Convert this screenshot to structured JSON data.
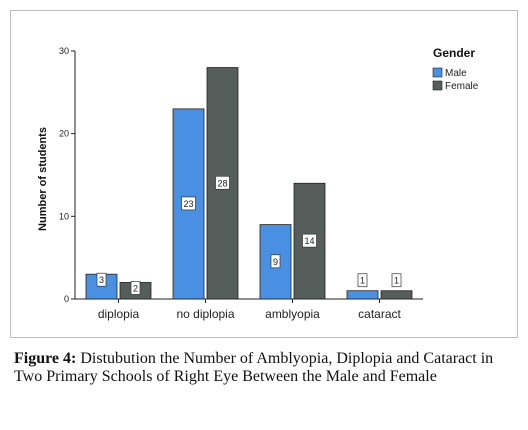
{
  "figure": {
    "caption_label": "Figure 4:",
    "caption_text": " Distubution the Number of Amblyopia, Diplopia and Cataract in Two Primary Schools of Right Eye Between the Male and Female"
  },
  "chart_data": {
    "type": "bar",
    "categories": [
      "diplopia",
      "no diplopia",
      "amblyopia",
      "cataract"
    ],
    "series": [
      {
        "name": "Male",
        "values": [
          3,
          23,
          9,
          1
        ],
        "color": "#4a90e2"
      },
      {
        "name": "Female",
        "values": [
          2,
          28,
          14,
          1
        ],
        "color": "#555e5a"
      }
    ],
    "ylabel": "Number of students",
    "xlabel": "",
    "ylim": [
      0,
      30
    ],
    "yticks": [
      0,
      10,
      20,
      30
    ],
    "legend_title": "Gender",
    "legend_position": "top-right",
    "grid": false
  }
}
